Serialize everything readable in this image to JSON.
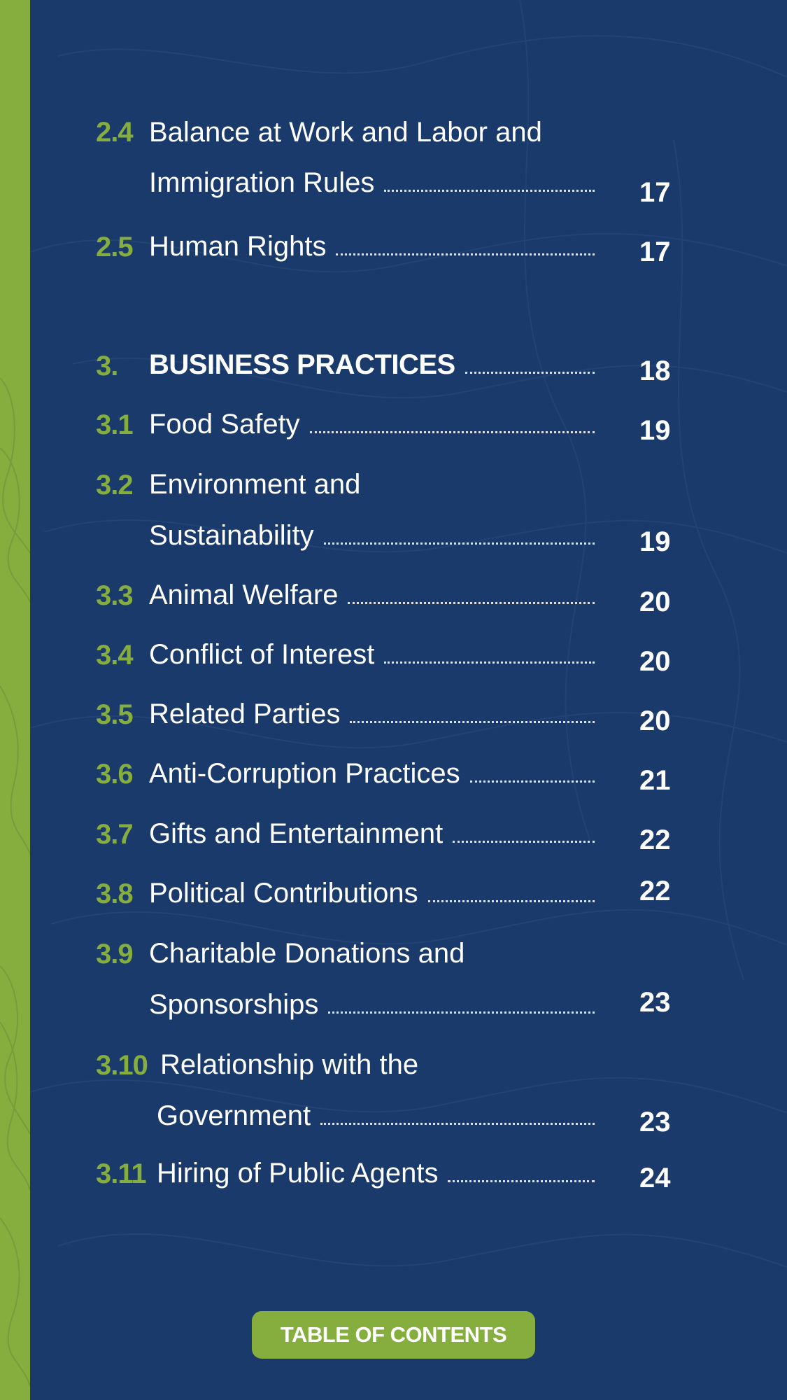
{
  "colors": {
    "background": "#1a3a6b",
    "accent": "#85ae3f",
    "text": "#ffffff"
  },
  "entries": [
    {
      "num": "2.4",
      "lines": [
        "Balance at Work and Labor and",
        "Immigration Rules"
      ],
      "page": "17"
    },
    {
      "num": "2.5",
      "lines": [
        "Human Rights"
      ],
      "page": "17"
    },
    {
      "num": "3.",
      "lines": [
        "BUSINESS PRACTICES"
      ],
      "page": "18"
    },
    {
      "num": "3.1",
      "lines": [
        "Food Safety"
      ],
      "page": "19"
    },
    {
      "num": "3.2",
      "lines": [
        "Environment and",
        "Sustainability"
      ],
      "page": "19"
    },
    {
      "num": "3.3",
      "lines": [
        "Animal Welfare"
      ],
      "page": "20"
    },
    {
      "num": "3.4",
      "lines": [
        "Conflict of Interest"
      ],
      "page": "20"
    },
    {
      "num": "3.5",
      "lines": [
        "Related Parties"
      ],
      "page": "20"
    },
    {
      "num": "3.6",
      "lines": [
        "Anti-Corruption Practices"
      ],
      "page": "21"
    },
    {
      "num": "3.7",
      "lines": [
        "Gifts and Entertainment"
      ],
      "page": "22"
    },
    {
      "num": "3.8",
      "lines": [
        "Political Contributions"
      ],
      "page": "22"
    },
    {
      "num": "3.9",
      "lines": [
        "Charitable Donations and",
        "Sponsorships"
      ],
      "page": "23"
    },
    {
      "num": "3.10",
      "lines": [
        "Relationship with the",
        "Government"
      ],
      "page": "23"
    },
    {
      "num": "3.11",
      "lines": [
        "Hiring of Public Agents"
      ],
      "page": "24"
    }
  ],
  "footer": {
    "badge_label": "TABLE OF CONTENTS"
  }
}
